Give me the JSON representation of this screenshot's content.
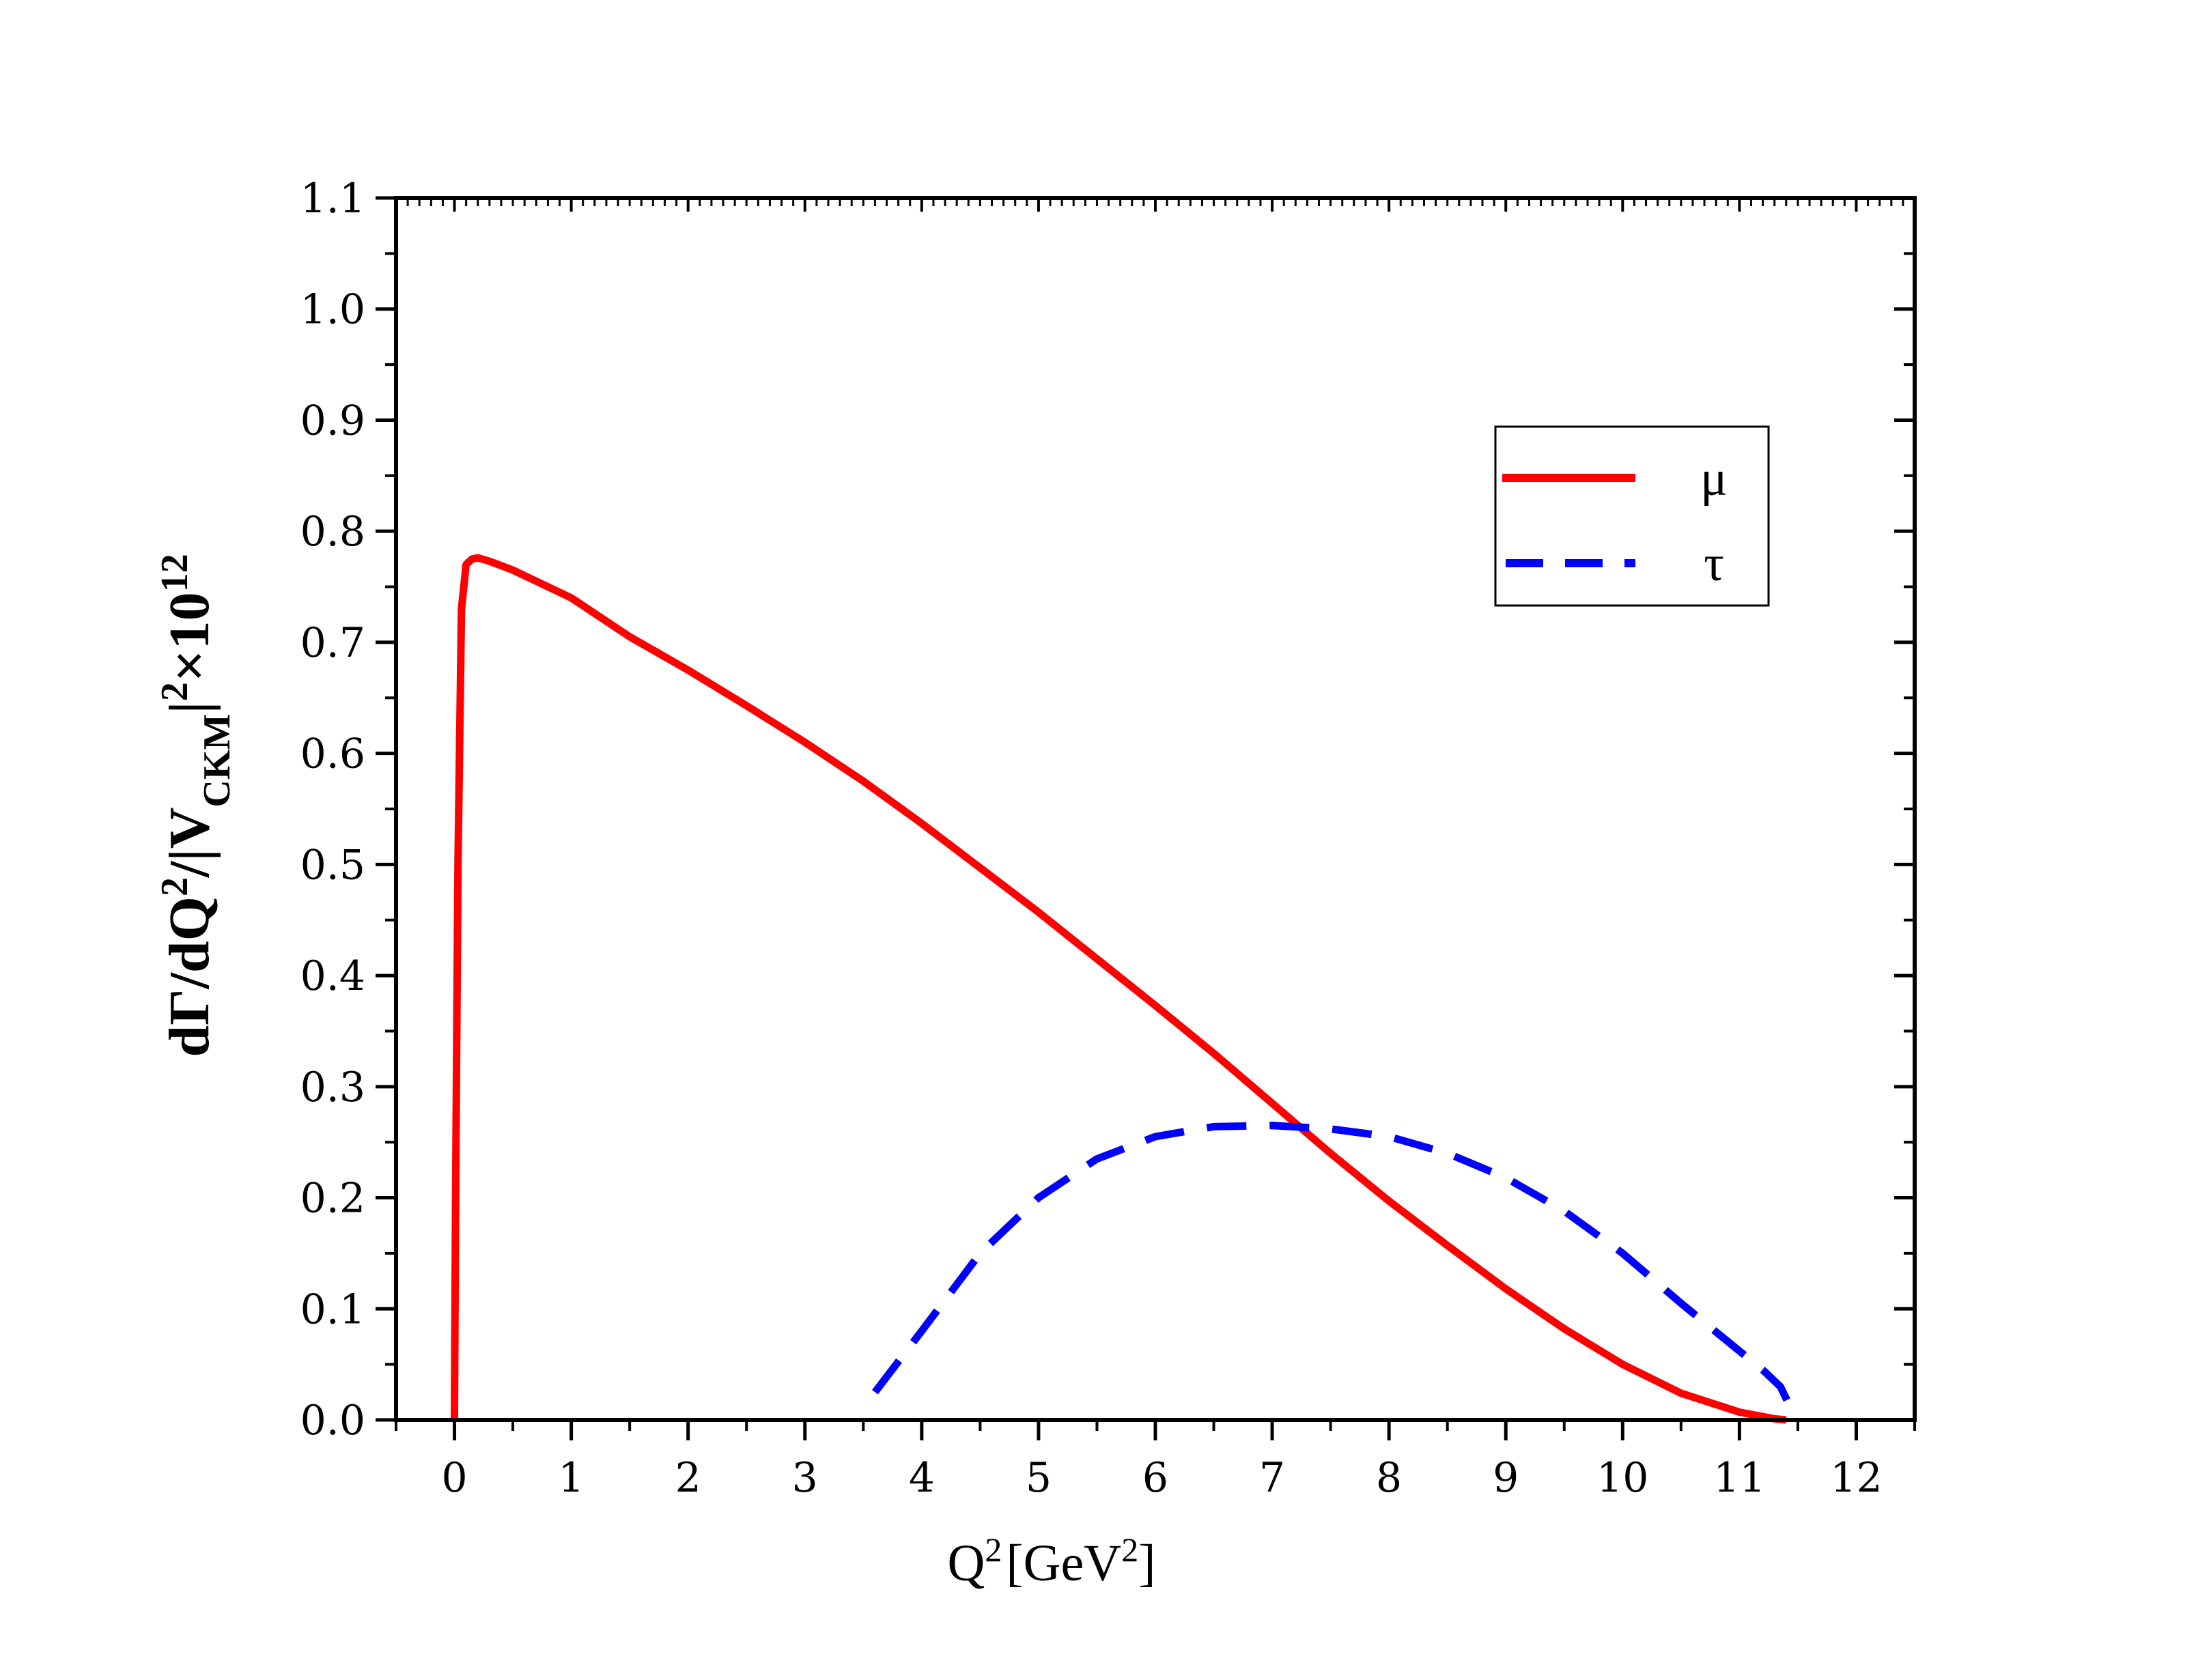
{
  "colors": {
    "mu": "#ff0000",
    "tau": "#0000ff",
    "axis": "#000000",
    "background": "#ffffff"
  },
  "chart_data": {
    "type": "line",
    "title": "",
    "xlabel": {
      "main": "Q",
      "sup1": "2",
      "bracket_open": "[GeV",
      "sup2": "2",
      "bracket_close": "]"
    },
    "ylabel": {
      "part1": "dΓ/dQ",
      "sup1": "2",
      "part2": "/|V",
      "sub": "CKM",
      "part3": "|",
      "sup2": "2",
      "part4": "×10",
      "sup3": "12"
    },
    "xlim": [
      -0.5,
      12.5
    ],
    "ylim": [
      0.0,
      1.1
    ],
    "xticks": [
      0,
      1,
      2,
      3,
      4,
      5,
      6,
      7,
      8,
      9,
      10,
      11,
      12
    ],
    "xtick_labels": [
      "0",
      "1",
      "2",
      "3",
      "4",
      "5",
      "6",
      "7",
      "8",
      "9",
      "10",
      "11",
      "12"
    ],
    "yticks": [
      0.0,
      0.1,
      0.2,
      0.3,
      0.4,
      0.5,
      0.6,
      0.7,
      0.8,
      0.9,
      1.0,
      1.1
    ],
    "ytick_labels": [
      "0.0",
      "0.1",
      "0.2",
      "0.3",
      "0.4",
      "0.5",
      "0.6",
      "0.7",
      "0.8",
      "0.9",
      "1.0",
      "1.1"
    ],
    "grid": false,
    "legend_position": "upper-right",
    "series": [
      {
        "name": "μ",
        "style": "solid",
        "color": "#ff0000",
        "x": [
          0.0,
          0.01,
          0.03,
          0.06,
          0.1,
          0.15,
          0.2,
          0.3,
          0.5,
          1.0,
          1.5,
          2.0,
          2.5,
          3.0,
          3.5,
          4.0,
          4.5,
          5.0,
          5.5,
          6.0,
          6.5,
          7.0,
          7.5,
          8.0,
          8.5,
          9.0,
          9.5,
          10.0,
          10.5,
          11.0,
          11.3,
          11.4
        ],
        "y": [
          0.0,
          0.2,
          0.5,
          0.73,
          0.77,
          0.775,
          0.776,
          0.773,
          0.765,
          0.74,
          0.705,
          0.675,
          0.643,
          0.61,
          0.575,
          0.537,
          0.497,
          0.457,
          0.415,
          0.373,
          0.33,
          0.285,
          0.24,
          0.197,
          0.157,
          0.118,
          0.082,
          0.05,
          0.024,
          0.007,
          0.001,
          0.0
        ]
      },
      {
        "name": "τ",
        "style": "dashed",
        "color": "#0000ff",
        "x": [
          3.6,
          4.0,
          4.5,
          5.0,
          5.5,
          6.0,
          6.5,
          7.0,
          7.5,
          8.0,
          8.5,
          9.0,
          9.5,
          10.0,
          10.5,
          11.0,
          11.2,
          11.35,
          11.42,
          11.45
        ],
        "y": [
          0.025,
          0.08,
          0.15,
          0.2,
          0.235,
          0.255,
          0.264,
          0.265,
          0.262,
          0.255,
          0.24,
          0.218,
          0.188,
          0.15,
          0.105,
          0.062,
          0.045,
          0.03,
          0.015,
          0.0
        ]
      }
    ]
  }
}
